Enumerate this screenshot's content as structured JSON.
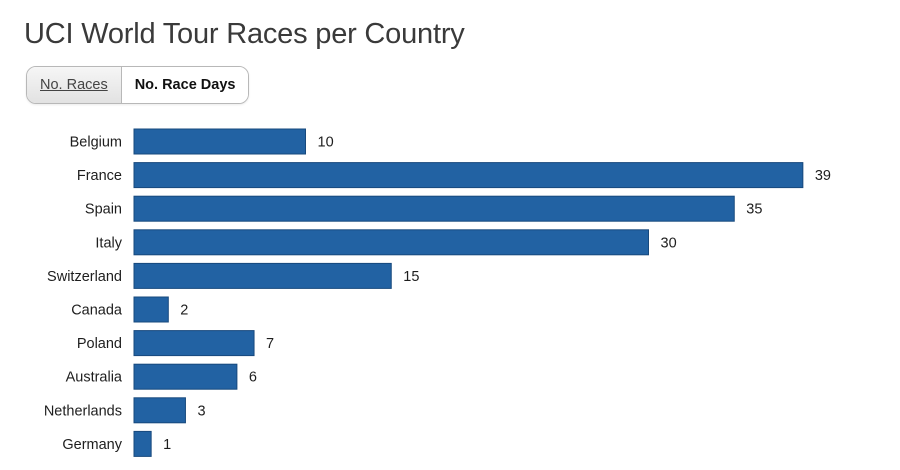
{
  "header": {
    "title": "UCI World Tour Races per Country"
  },
  "toggle": {
    "races_label": "No. Races",
    "race_days_label": "No. Race Days",
    "active": "No. Race Days"
  },
  "colors": {
    "bar": "#2262a3",
    "bar_stroke": "#17497d"
  },
  "chart_data": {
    "type": "bar",
    "orientation": "horizontal",
    "title": "UCI World Tour Races per Country",
    "xlabel": "",
    "ylabel": "",
    "categories": [
      "Belgium",
      "France",
      "Spain",
      "Italy",
      "Switzerland",
      "Canada",
      "Poland",
      "Australia",
      "Netherlands",
      "Germany"
    ],
    "values": [
      10,
      39,
      35,
      30,
      15,
      2,
      7,
      6,
      3,
      1
    ],
    "data_labels": true,
    "grid": false,
    "legend": "none"
  }
}
